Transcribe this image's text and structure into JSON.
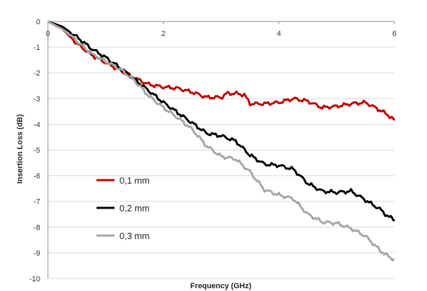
{
  "chart_data": {
    "type": "line",
    "xlabel": "Frequency (GHz)",
    "ylabel": "Insertion Loss (dB)",
    "xlim": [
      0,
      6
    ],
    "ylim": [
      -10,
      0
    ],
    "xticks": [
      "0",
      "2",
      "4",
      "6"
    ],
    "yticks": [
      "0",
      "-1",
      "-2",
      "-3",
      "-4",
      "-5",
      "-6",
      "-7",
      "-8",
      "-9",
      "-10"
    ],
    "grid": "horizontal",
    "legend_position": "lower-left",
    "series": [
      {
        "name": "0,1 mm",
        "color": "#c00000",
        "x": [
          0,
          0.25,
          0.5,
          0.75,
          1.0,
          1.25,
          1.5,
          1.75,
          2.0,
          2.25,
          2.5,
          2.75,
          3.0,
          3.1,
          3.25,
          3.4,
          3.5,
          3.75,
          4.0,
          4.25,
          4.5,
          4.75,
          5.0,
          5.25,
          5.5,
          5.75,
          5.9,
          6.0
        ],
        "values": [
          0,
          -0.3,
          -0.85,
          -1.3,
          -1.6,
          -1.9,
          -2.2,
          -2.45,
          -2.55,
          -2.6,
          -2.75,
          -2.95,
          -2.95,
          -2.8,
          -2.8,
          -2.85,
          -3.2,
          -3.2,
          -3.15,
          -3.0,
          -3.1,
          -3.35,
          -3.3,
          -3.2,
          -3.15,
          -3.45,
          -3.65,
          -3.85
        ]
      },
      {
        "name": "0,2 mm",
        "color": "#000000",
        "x": [
          0,
          0.25,
          0.5,
          0.75,
          1.0,
          1.25,
          1.5,
          1.75,
          2.0,
          2.25,
          2.5,
          2.75,
          3.0,
          3.25,
          3.5,
          3.75,
          4.0,
          4.25,
          4.5,
          4.75,
          5.0,
          5.25,
          5.5,
          5.75,
          5.9,
          6.0
        ],
        "values": [
          0,
          -0.2,
          -0.6,
          -1.05,
          -1.4,
          -1.8,
          -2.25,
          -2.7,
          -3.15,
          -3.55,
          -3.95,
          -4.35,
          -4.45,
          -4.65,
          -5.2,
          -5.55,
          -5.6,
          -5.75,
          -6.3,
          -6.6,
          -6.65,
          -6.6,
          -6.95,
          -7.3,
          -7.6,
          -7.7
        ]
      },
      {
        "name": "0,3 mm",
        "color": "#a6a6a6",
        "x": [
          0,
          0.25,
          0.5,
          0.75,
          1.0,
          1.25,
          1.5,
          1.75,
          2.0,
          2.25,
          2.5,
          2.75,
          3.0,
          3.25,
          3.5,
          3.75,
          4.0,
          4.25,
          4.5,
          4.75,
          5.0,
          5.25,
          5.5,
          5.75,
          5.9,
          6.0
        ],
        "values": [
          0,
          -0.3,
          -0.75,
          -1.25,
          -1.55,
          -1.85,
          -2.3,
          -2.9,
          -3.35,
          -3.75,
          -4.2,
          -4.85,
          -5.25,
          -5.35,
          -5.85,
          -6.55,
          -6.75,
          -6.9,
          -7.5,
          -7.8,
          -7.85,
          -8.05,
          -8.35,
          -8.9,
          -9.15,
          -9.25
        ]
      }
    ]
  }
}
